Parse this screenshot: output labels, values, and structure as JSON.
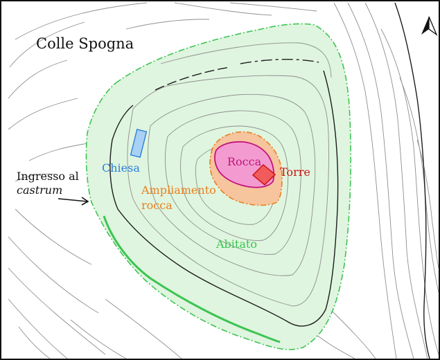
{
  "map": {
    "title": "Colle Spogna",
    "north_arrow": "north-arrow-icon",
    "entrance": {
      "line1": "Ingresso al",
      "line2": "castrum"
    },
    "labels": {
      "chiesa": "Chiesa",
      "ampliamento_line1": "Ampliamento",
      "ampliamento_line2": "rocca",
      "rocca": "Rocca",
      "torre": "Torre",
      "abitato": "Abitato"
    },
    "colors": {
      "abitato_fill": "#dff5df",
      "abitato_stroke": "#3cc452",
      "ampliamento_fill": "#f6c49d",
      "ampliamento_stroke": "#ea7f1e",
      "rocca_fill": "#f39bd0",
      "rocca_stroke": "#c2137c",
      "torre_fill": "#f25b5b",
      "torre_stroke": "#c81414",
      "chiesa_fill": "#a9d1f5",
      "chiesa_stroke": "#2d7fd9",
      "contour": "#8e8e8e",
      "contour_major": "#1c1c1c"
    }
  }
}
